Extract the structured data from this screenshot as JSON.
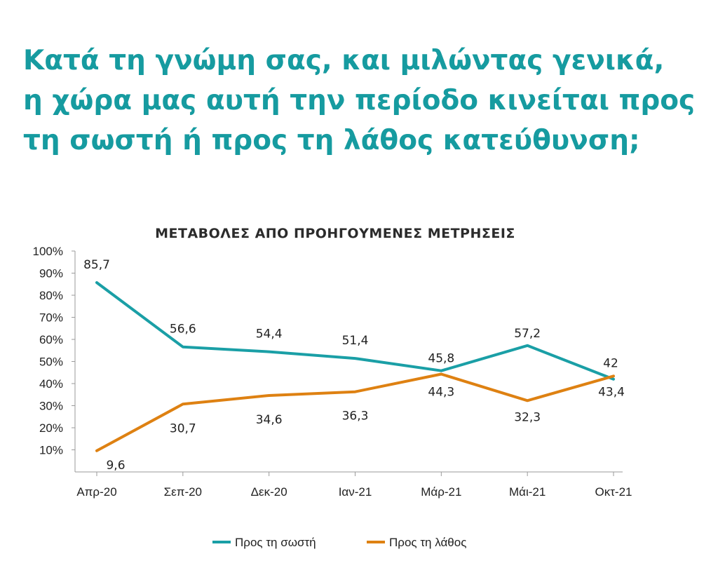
{
  "header": {
    "title_lines": [
      "Κατά τη γνώμη σας, και μιλώντας γενικά,",
      "η χώρα μας αυτή την περίοδο κινείται προς",
      "τη σωστή ή προς τη λάθος κατεύθυνση;"
    ]
  },
  "colors": {
    "title": "#169ba0",
    "series_right": "#1a9fa6",
    "series_wrong": "#de8112",
    "axis": "#9a9a9a"
  },
  "chart_data": {
    "type": "line",
    "title": "ΜΕΤΑΒΟΛΕΣ ΑΠΟ ΠΡΟΗΓΟΥΜΕΝΕΣ ΜΕΤΡΗΣΕΙΣ",
    "xlabel": "",
    "ylabel": "",
    "ylim": [
      0,
      100
    ],
    "yticks": [
      "10%",
      "20%",
      "30%",
      "40%",
      "50%",
      "60%",
      "70%",
      "80%",
      "90%",
      "100%"
    ],
    "ytick_values": [
      10,
      20,
      30,
      40,
      50,
      60,
      70,
      80,
      90,
      100
    ],
    "categories": [
      "Απρ-20",
      "Σεπ-20",
      "Δεκ-20",
      "Ιαν-21",
      "Μάρ-21",
      "Μάι-21",
      "Οκτ-21"
    ],
    "series": [
      {
        "name": "Προς τη σωστή",
        "color": "#1a9fa6",
        "values": [
          85.7,
          56.6,
          54.4,
          51.4,
          45.8,
          57.2,
          42
        ],
        "labels": [
          "85,7",
          "56,6",
          "54,4",
          "51,4",
          "45,8",
          "57,2",
          "42"
        ],
        "label_position": "above"
      },
      {
        "name": "Προς τη λάθος",
        "color": "#de8112",
        "values": [
          9.6,
          30.7,
          34.6,
          36.3,
          44.3,
          32.3,
          43.4
        ],
        "labels": [
          "9,6",
          "30,7",
          "34,6",
          "36,3",
          "44,3",
          "32,3",
          "43,4"
        ],
        "label_position": "below"
      }
    ],
    "legend": {
      "placement": "bottom-center",
      "entries": [
        "Προς τη σωστή",
        "Προς τη λάθος"
      ]
    },
    "grid": false
  }
}
